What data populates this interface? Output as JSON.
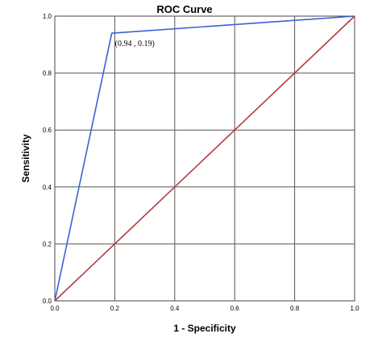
{
  "chart_data": {
    "type": "line",
    "title": "ROC Curve",
    "xlabel": "1 - Specificity",
    "ylabel": "Sensitivity",
    "xlim": [
      0,
      1
    ],
    "ylim": [
      0,
      1
    ],
    "xticks": [
      "0.0",
      "0.2",
      "0.4",
      "0.6",
      "0.8",
      "1.0"
    ],
    "yticks": [
      "0.0",
      "0.2",
      "0.4",
      "0.6",
      "0.8",
      "1.0"
    ],
    "grid": true,
    "series": [
      {
        "color": "#3a62d6",
        "x": [
          0,
          0.19,
          1
        ],
        "y": [
          0,
          0.94,
          1
        ]
      },
      {
        "color": "#b83a3a",
        "x": [
          0,
          1
        ],
        "y": [
          0,
          1
        ]
      }
    ],
    "annotations": [
      {
        "text": "(0.94 , 0.19)",
        "x": 0.19,
        "y": 0.94
      }
    ]
  }
}
